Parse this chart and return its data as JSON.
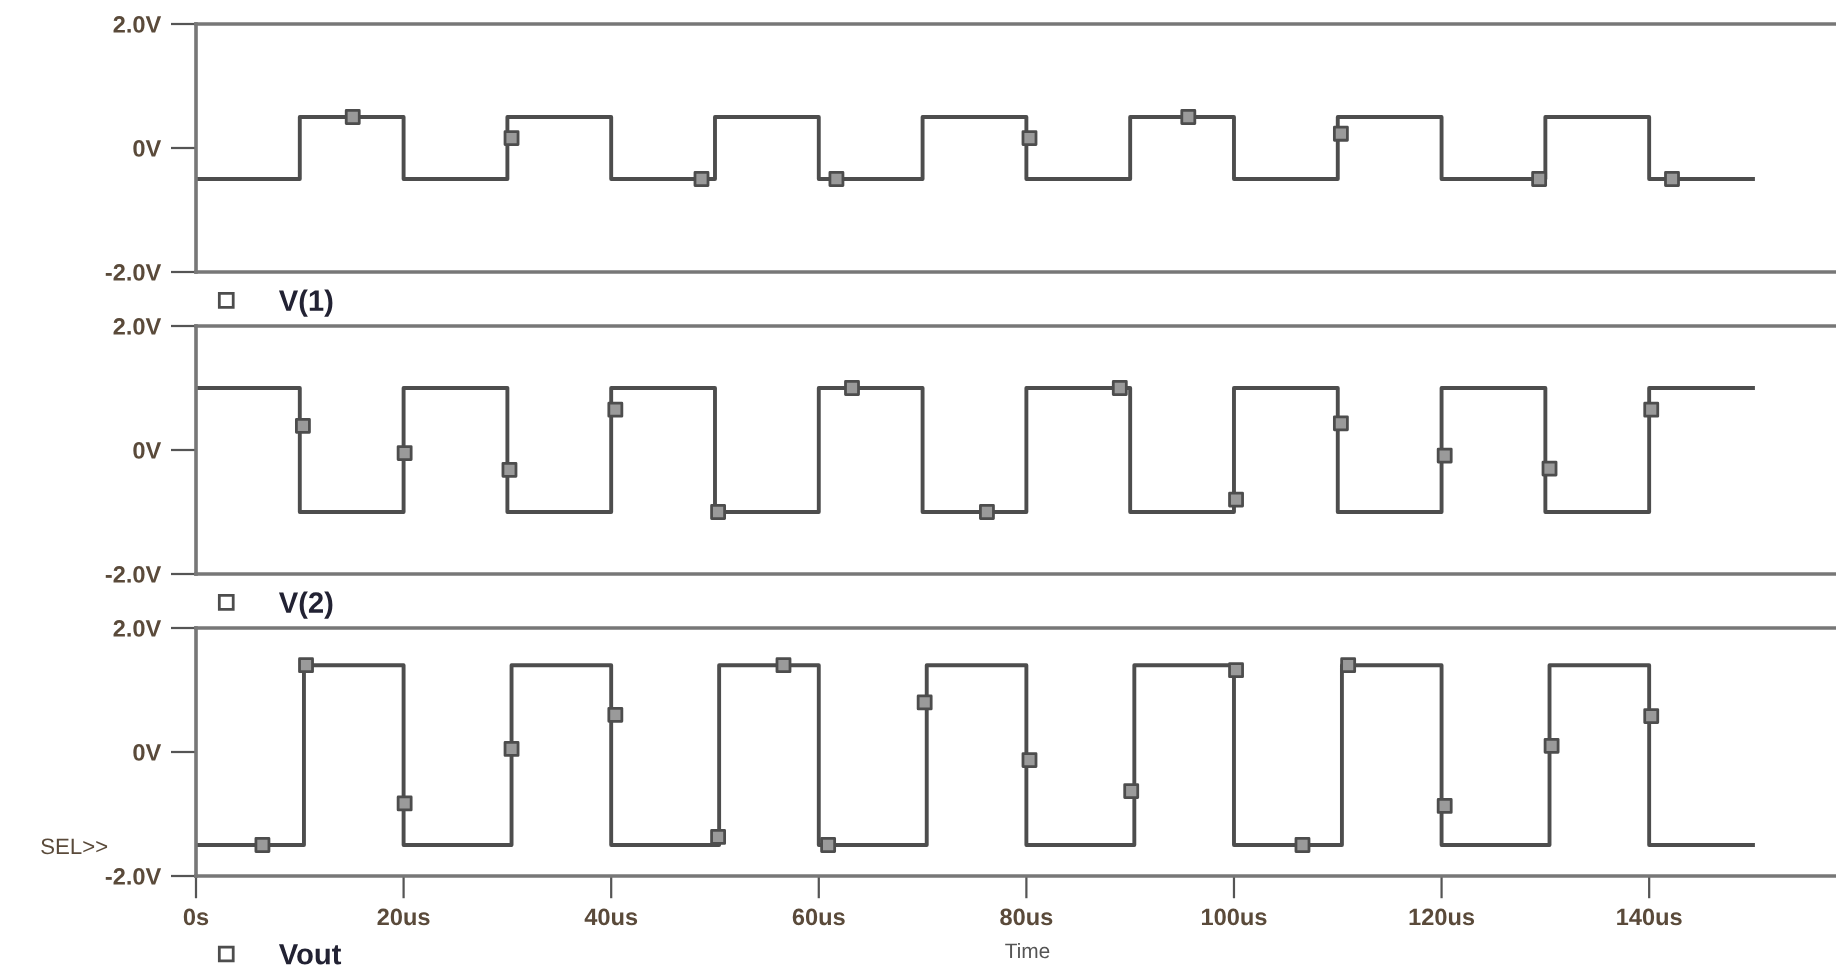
{
  "chart_data": [
    {
      "type": "step",
      "legend": "bottom left",
      "tick_labels": "y",
      "grid": false,
      "line_style": "solid",
      "xlim": [
        0,
        158
      ],
      "xticks": [
        {
          "value": 0,
          "label": null
        },
        {
          "value": 20,
          "label": null
        },
        {
          "value": 40,
          "label": null
        },
        {
          "value": 60,
          "label": null
        },
        {
          "value": 80,
          "label": null
        },
        {
          "value": 100,
          "label": null
        },
        {
          "value": 120,
          "label": null
        },
        {
          "value": 140,
          "label": null
        }
      ],
      "ylim": [
        -2,
        2
      ],
      "yticks": [
        {
          "value": -2,
          "label": "-2.0V"
        },
        {
          "value": 0,
          "label": "0V"
        },
        {
          "value": 2,
          "label": "2.0V"
        }
      ],
      "series": [
        {
          "name": "V(1)",
          "color": "#4d4d4d",
          "x": [
            0,
            10,
            20,
            30,
            40,
            50,
            60,
            70,
            80,
            90,
            100,
            110,
            120,
            130,
            140,
            150
          ],
          "values": [
            -0.5,
            0.5,
            -0.5,
            0.5,
            -0.5,
            0.5,
            -0.5,
            0.5,
            -0.5,
            0.5,
            -0.5,
            0.5,
            -0.5,
            0.5,
            -0.5,
            -0.5
          ]
        },
        {
          "type": "scatter",
          "marker": "square",
          "color": "#4d4d4d",
          "x": [
            15.1,
            30.4,
            48.7,
            61.7,
            80.3,
            95.6,
            110.3,
            129.4,
            142.2
          ],
          "values": [
            0.5,
            0.16,
            -0.5,
            -0.5,
            0.16,
            0.5,
            0.23,
            -0.5,
            -0.5
          ]
        }
      ]
    },
    {
      "type": "step",
      "legend": "bottom left",
      "tick_labels": "y",
      "grid": false,
      "line_style": "solid",
      "xlim": [
        0,
        158
      ],
      "xticks": [
        {
          "value": 0,
          "label": null
        },
        {
          "value": 20,
          "label": null
        },
        {
          "value": 40,
          "label": null
        },
        {
          "value": 60,
          "label": null
        },
        {
          "value": 80,
          "label": null
        },
        {
          "value": 100,
          "label": null
        },
        {
          "value": 120,
          "label": null
        },
        {
          "value": 140,
          "label": null
        }
      ],
      "ylim": [
        -2,
        2
      ],
      "yticks": [
        {
          "value": -2,
          "label": "-2.0V"
        },
        {
          "value": 0,
          "label": "0V"
        },
        {
          "value": 2,
          "label": "2.0V"
        }
      ],
      "series": [
        {
          "name": "V(2)",
          "color": "#4d4d4d",
          "x": [
            0,
            10,
            20,
            30,
            40,
            50,
            60,
            70,
            80,
            90,
            100,
            110,
            120,
            130,
            140,
            150
          ],
          "values": [
            1,
            -1,
            1,
            -1,
            1,
            -1,
            1,
            -1,
            1,
            -1,
            1,
            -1,
            1,
            -1,
            1,
            1
          ]
        },
        {
          "type": "scatter",
          "marker": "square",
          "color": "#4d4d4d",
          "x": [
            10.3,
            20.1,
            30.2,
            40.4,
            50.3,
            63.2,
            76.2,
            89,
            100.2,
            110.3,
            120.3,
            130.4,
            140.2
          ],
          "values": [
            0.39,
            -0.05,
            -0.32,
            0.65,
            -1,
            1,
            -1,
            1,
            -0.8,
            0.43,
            -0.09,
            -0.3,
            0.65
          ]
        }
      ]
    },
    {
      "type": "step",
      "legend": "bottom left",
      "grid": false,
      "line_style": "solid",
      "xlabel": "Time",
      "annotations": [
        "SEL>>"
      ],
      "xlim": [
        0,
        158
      ],
      "xticks": [
        {
          "value": 0,
          "label": "0s"
        },
        {
          "value": 20,
          "label": "20us"
        },
        {
          "value": 40,
          "label": "40us"
        },
        {
          "value": 60,
          "label": "60us"
        },
        {
          "value": 80,
          "label": "80us"
        },
        {
          "value": 100,
          "label": "100us"
        },
        {
          "value": 120,
          "label": "120us"
        },
        {
          "value": 140,
          "label": "140us"
        }
      ],
      "ylim": [
        -2,
        2
      ],
      "yticks": [
        {
          "value": -2,
          "label": "-2.0V"
        },
        {
          "value": 0,
          "label": "0V"
        },
        {
          "value": 2,
          "label": "2.0V"
        }
      ],
      "series": [
        {
          "name": "Vout",
          "color": "#4d4d4d",
          "x": [
            0,
            10.4,
            20,
            30.4,
            40,
            50.4,
            60,
            70.4,
            80,
            90.4,
            100,
            110.4,
            120,
            130.4,
            140,
            150
          ],
          "values": [
            -1.5,
            1.4,
            -1.5,
            1.4,
            -1.5,
            1.4,
            -1.5,
            1.4,
            -1.5,
            1.4,
            -1.5,
            1.4,
            -1.5,
            1.4,
            -1.5,
            -1.5
          ]
        },
        {
          "type": "scatter",
          "marker": "square",
          "color": "#4d4d4d",
          "x": [
            6.4,
            10.6,
            20.1,
            30.4,
            40.4,
            50.3,
            56.6,
            60.9,
            70.2,
            80.3,
            90.1,
            100.2,
            106.6,
            111,
            120.3,
            130.6,
            140.2
          ],
          "values": [
            -1.5,
            1.4,
            -0.83,
            0.05,
            0.6,
            -1.37,
            1.4,
            -1.5,
            0.8,
            -0.13,
            -0.63,
            1.32,
            -1.5,
            1.4,
            -0.87,
            0.1,
            0.58
          ]
        }
      ]
    }
  ]
}
